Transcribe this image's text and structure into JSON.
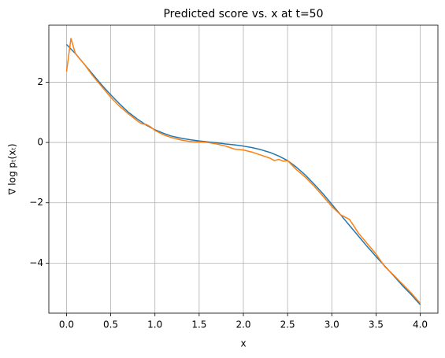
{
  "chart_data": {
    "type": "line",
    "title": "Predicted score vs. x at t=50",
    "x_label": "x",
    "y_label": "∇ log pₜ(xₜ)",
    "xlim": [
      -0.2,
      4.2
    ],
    "ylim": [
      -5.66,
      3.89
    ],
    "xticks": [
      {
        "value": 0,
        "label": "0.0"
      },
      {
        "value": 0.5,
        "label": "0.5"
      },
      {
        "value": 1,
        "label": "1.0"
      },
      {
        "value": 1.5,
        "label": "1.5"
      },
      {
        "value": 2,
        "label": "2.0"
      },
      {
        "value": 2.5,
        "label": "2.5"
      },
      {
        "value": 3,
        "label": "3.0"
      },
      {
        "value": 3.5,
        "label": "3.5"
      },
      {
        "value": 4,
        "label": "4.0"
      }
    ],
    "yticks": [
      {
        "value": -4,
        "label": "−4"
      },
      {
        "value": -2,
        "label": "−2"
      },
      0,
      2
    ],
    "grid": true,
    "series": [
      {
        "color": "#1f77b4",
        "x": [
          0,
          0.1,
          0.2,
          0.3,
          0.4,
          0.5,
          0.6,
          0.7,
          0.8,
          0.9,
          1.0,
          1.1,
          1.2,
          1.3,
          1.4,
          1.5,
          1.6,
          1.7,
          1.8,
          1.9,
          2.0,
          2.1,
          2.2,
          2.3,
          2.4,
          2.5,
          2.6,
          2.7,
          2.8,
          2.9,
          3.0,
          3.1,
          3.2,
          3.3,
          3.4,
          3.5,
          3.6,
          3.7,
          3.8,
          3.9,
          4.0
        ],
        "values": [
          3.25,
          2.95,
          2.6,
          2.25,
          1.9,
          1.58,
          1.28,
          1.0,
          0.78,
          0.58,
          0.42,
          0.3,
          0.2,
          0.14,
          0.09,
          0.05,
          0.02,
          -0.01,
          -0.05,
          -0.08,
          -0.12,
          -0.17,
          -0.24,
          -0.33,
          -0.45,
          -0.6,
          -0.82,
          -1.08,
          -1.38,
          -1.7,
          -2.05,
          -2.4,
          -2.75,
          -3.1,
          -3.45,
          -3.78,
          -4.1,
          -4.42,
          -4.75,
          -5.05,
          -5.38
        ]
      },
      {
        "color": "#ff7f0e",
        "x": [
          0,
          0.05,
          0.1,
          0.2,
          0.3,
          0.4,
          0.5,
          0.6,
          0.7,
          0.8,
          0.85,
          0.9,
          0.95,
          1.0,
          1.1,
          1.2,
          1.3,
          1.4,
          1.5,
          1.6,
          1.7,
          1.8,
          1.9,
          2.0,
          2.1,
          2.2,
          2.3,
          2.35,
          2.4,
          2.45,
          2.5,
          2.6,
          2.7,
          2.8,
          2.9,
          3.0,
          3.1,
          3.2,
          3.3,
          3.4,
          3.5,
          3.6,
          3.7,
          3.8,
          3.9,
          4.0
        ],
        "values": [
          2.35,
          3.45,
          2.95,
          2.6,
          2.2,
          1.85,
          1.5,
          1.2,
          0.95,
          0.72,
          0.62,
          0.6,
          0.52,
          0.4,
          0.25,
          0.15,
          0.08,
          0.03,
          0.02,
          0.0,
          -0.05,
          -0.12,
          -0.22,
          -0.25,
          -0.32,
          -0.42,
          -0.52,
          -0.6,
          -0.56,
          -0.62,
          -0.6,
          -0.9,
          -1.15,
          -1.45,
          -1.78,
          -2.12,
          -2.4,
          -2.55,
          -3.0,
          -3.35,
          -3.7,
          -4.12,
          -4.4,
          -4.7,
          -5.0,
          -5.33
        ]
      }
    ]
  }
}
